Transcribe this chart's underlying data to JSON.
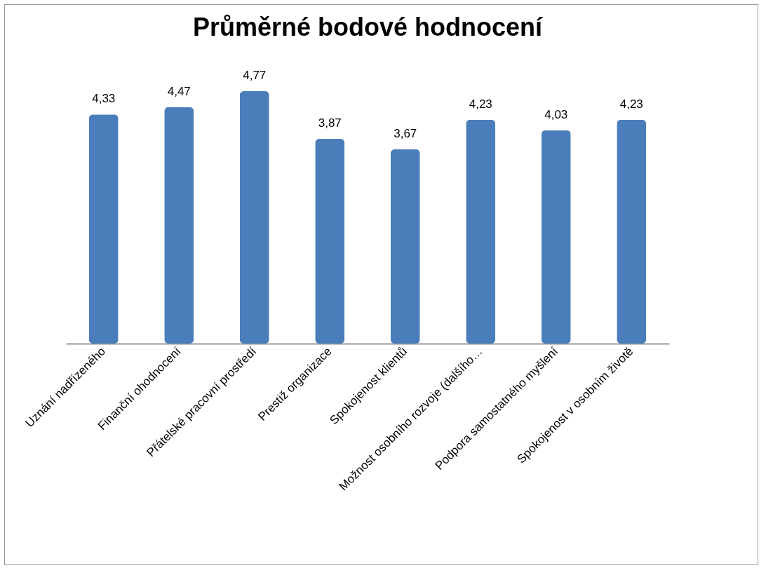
{
  "chart_data": {
    "type": "bar",
    "title": "Průměrné bodové hodnocení",
    "categories": [
      "Uznání nadřízeného",
      "Finanční ohodnocení",
      "Přátelské pracovní prostředí",
      "Prestiž organizace",
      "Spokojenost klientů",
      "Možnost osobního rozvoje (dalšího…",
      "Podpora samostatného myšlení",
      "Spokojenost v osobním životě"
    ],
    "values": [
      4.33,
      4.47,
      4.77,
      3.87,
      3.67,
      4.23,
      4.03,
      4.23
    ],
    "value_labels": [
      "4,33",
      "4,47",
      "4,77",
      "3,87",
      "3,67",
      "4,23",
      "4,03",
      "4,23"
    ],
    "color": "#4a7ebb"
  }
}
